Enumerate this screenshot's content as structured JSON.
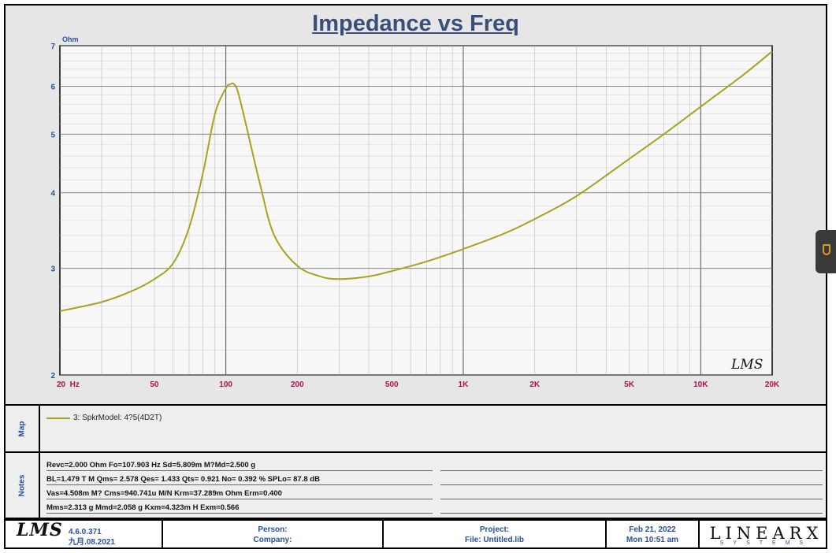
{
  "chart_data": {
    "type": "line",
    "title": "Impedance vs Freq",
    "ylabel": "Ohm",
    "xscale": "log",
    "yscale": "log",
    "xlim": [
      20,
      20000
    ],
    "ylim": [
      2,
      7
    ],
    "x_ticks": [
      20,
      50,
      100,
      200,
      500,
      1000,
      2000,
      5000,
      10000,
      20000
    ],
    "x_tick_labels": [
      "20  Hz",
      "50",
      "100",
      "200",
      "500",
      "1K",
      "2K",
      "5K",
      "10K",
      "20K"
    ],
    "y_ticks": [
      2,
      3,
      4,
      5,
      6,
      7
    ],
    "y_tick_labels": [
      "2",
      "3",
      "4",
      "5",
      "6",
      "7"
    ],
    "grid": true,
    "watermark": "LMS",
    "series": [
      {
        "name": "3: SpkrModel: 4?5(4D2T)",
        "color": "#a8a221",
        "x": [
          20,
          30,
          40,
          50,
          60,
          70,
          80,
          90,
          100,
          105,
          108,
          112,
          120,
          140,
          160,
          200,
          250,
          300,
          400,
          500,
          700,
          1000,
          1500,
          2000,
          3000,
          5000,
          7000,
          10000,
          15000,
          20000
        ],
        "y": [
          2.55,
          2.64,
          2.75,
          2.88,
          3.06,
          3.5,
          4.3,
          5.4,
          5.95,
          6.05,
          6.05,
          5.9,
          5.3,
          4.1,
          3.4,
          3.03,
          2.91,
          2.88,
          2.91,
          2.97,
          3.08,
          3.23,
          3.43,
          3.62,
          3.95,
          4.55,
          5.0,
          5.55,
          6.25,
          6.85
        ]
      }
    ]
  },
  "map": {
    "label": "Map",
    "legend": "3: SpkrModel: 4?5(4D2T)"
  },
  "notes": {
    "label": "Notes",
    "lines": [
      "Revc=2.000 Ohm  Fo=107.903 Hz  Sd=5.809m M?Md=2.500 g",
      "BL=1.479 T M  Qms= 2.578  Qes= 1.433  Qts= 0.921  No= 0.392 %  SPLo= 87.8 dB",
      "Vas=4.508m M? Cms=940.741u M/N  Krm=37.289m Ohm  Erm=0.400",
      "Mms=2.313 g  Mmd=2.058 g  Kxm=4.323m H  Exm=0.566"
    ]
  },
  "footer": {
    "logo": "LMS",
    "version": "4.6.0.371",
    "build_date": "九月.08.2021",
    "person_label": "Person:",
    "company_label": "Company:",
    "project_label": "Project:",
    "file_label": "File: Untitled.lib",
    "date": "Feb 21, 2022",
    "time": "Mon 10:51 am",
    "brand": "LINEARX",
    "brand_sub": "SYSTEMS"
  }
}
